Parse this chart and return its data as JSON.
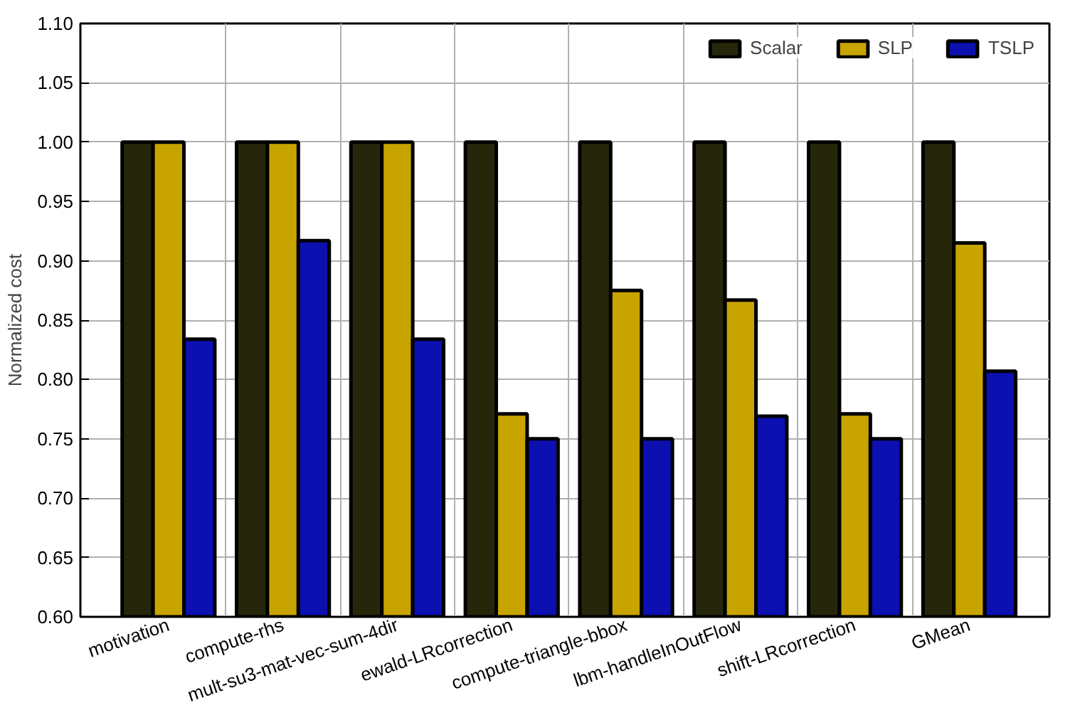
{
  "chart_data": {
    "type": "bar",
    "ylabel": "Normalized cost",
    "categories": [
      "motivation",
      "compute-rhs",
      "mult-su3-mat-vec-sum-4dir",
      "ewald-LRcorrection",
      "compute-triangle-bbox",
      "lbm-handleInOutFlow",
      "shift-LRcorrection",
      "GMean"
    ],
    "series": [
      {
        "name": "Scalar",
        "color": "#26260a",
        "values": [
          1.0,
          1.0,
          1.0,
          1.0,
          1.0,
          1.0,
          1.0,
          1.0
        ]
      },
      {
        "name": "SLP",
        "color": "#c8a400",
        "values": [
          1.0,
          1.0,
          1.0,
          0.771,
          0.875,
          0.867,
          0.771,
          0.915
        ]
      },
      {
        "name": "TSLP",
        "color": "#0c10b0",
        "values": [
          0.834,
          0.917,
          0.834,
          0.75,
          0.75,
          0.769,
          0.75,
          0.807
        ]
      }
    ],
    "ylim": [
      0.6,
      1.1
    ],
    "yticks": [
      {
        "value": 0.6,
        "label": "0.60"
      },
      {
        "value": 0.65,
        "label": "0.65"
      },
      {
        "value": 0.7,
        "label": "0.70"
      },
      {
        "value": 0.75,
        "label": "0.75"
      },
      {
        "value": 0.8,
        "label": "0.80"
      },
      {
        "value": 0.85,
        "label": "0.85"
      },
      {
        "value": 0.9,
        "label": "0.90"
      },
      {
        "value": 0.95,
        "label": "0.95"
      },
      {
        "value": 1.0,
        "label": "1.00"
      },
      {
        "value": 1.05,
        "label": "1.05"
      },
      {
        "value": 1.1,
        "label": "1.10"
      }
    ],
    "grid": true,
    "legend": "top right"
  }
}
